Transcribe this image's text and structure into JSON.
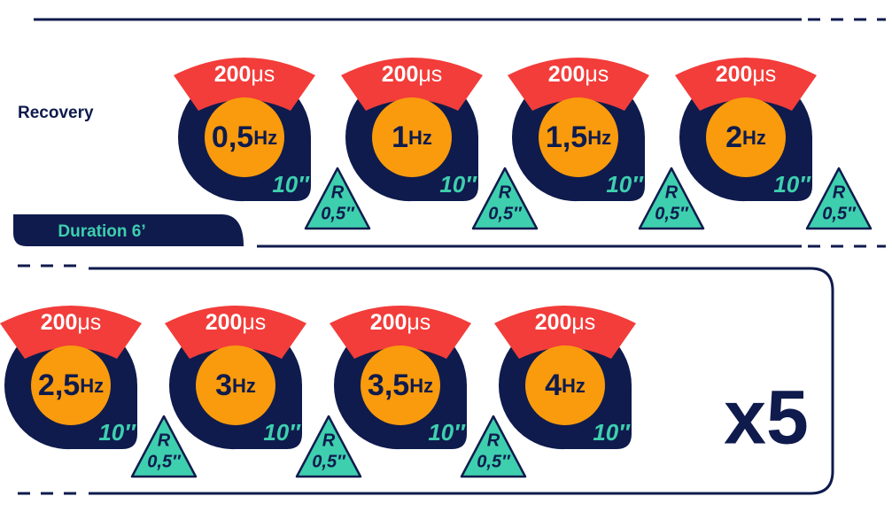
{
  "label": "Recovery",
  "duration": "Duration 6’",
  "rows": [
    {
      "steps": [
        {
          "pulse": "200",
          "pulse_unit": "μs",
          "frequency": "0,5",
          "frequency_unit": "Hz",
          "time": "10″",
          "rest_label": "R",
          "rest_time": "0,5″"
        },
        {
          "pulse": "200",
          "pulse_unit": "μs",
          "frequency": "1",
          "frequency_unit": "Hz",
          "time": "10″",
          "rest_label": "R",
          "rest_time": "0,5″"
        },
        {
          "pulse": "200",
          "pulse_unit": "μs",
          "frequency": "1,5",
          "frequency_unit": "Hz",
          "time": "10″",
          "rest_label": "R",
          "rest_time": "0,5″"
        },
        {
          "pulse": "200",
          "pulse_unit": "μs",
          "frequency": "2",
          "frequency_unit": "Hz",
          "time": "10″",
          "rest_label": "R",
          "rest_time": "0,5″"
        }
      ]
    },
    {
      "steps": [
        {
          "pulse": "200",
          "pulse_unit": "μs",
          "frequency": "2,5",
          "frequency_unit": "Hz",
          "time": "10″",
          "rest_label": "R",
          "rest_time": "0,5″"
        },
        {
          "pulse": "200",
          "pulse_unit": "μs",
          "frequency": "3",
          "frequency_unit": "Hz",
          "time": "10″",
          "rest_label": "R",
          "rest_time": "0,5″"
        },
        {
          "pulse": "200",
          "pulse_unit": "μs",
          "frequency": "3,5",
          "frequency_unit": "Hz",
          "time": "10″",
          "rest_label": "R",
          "rest_time": "0,5″"
        },
        {
          "pulse": "200",
          "pulse_unit": "μs",
          "frequency": "4",
          "frequency_unit": "Hz",
          "time": "10″"
        }
      ]
    }
  ],
  "repeat": "x5"
}
